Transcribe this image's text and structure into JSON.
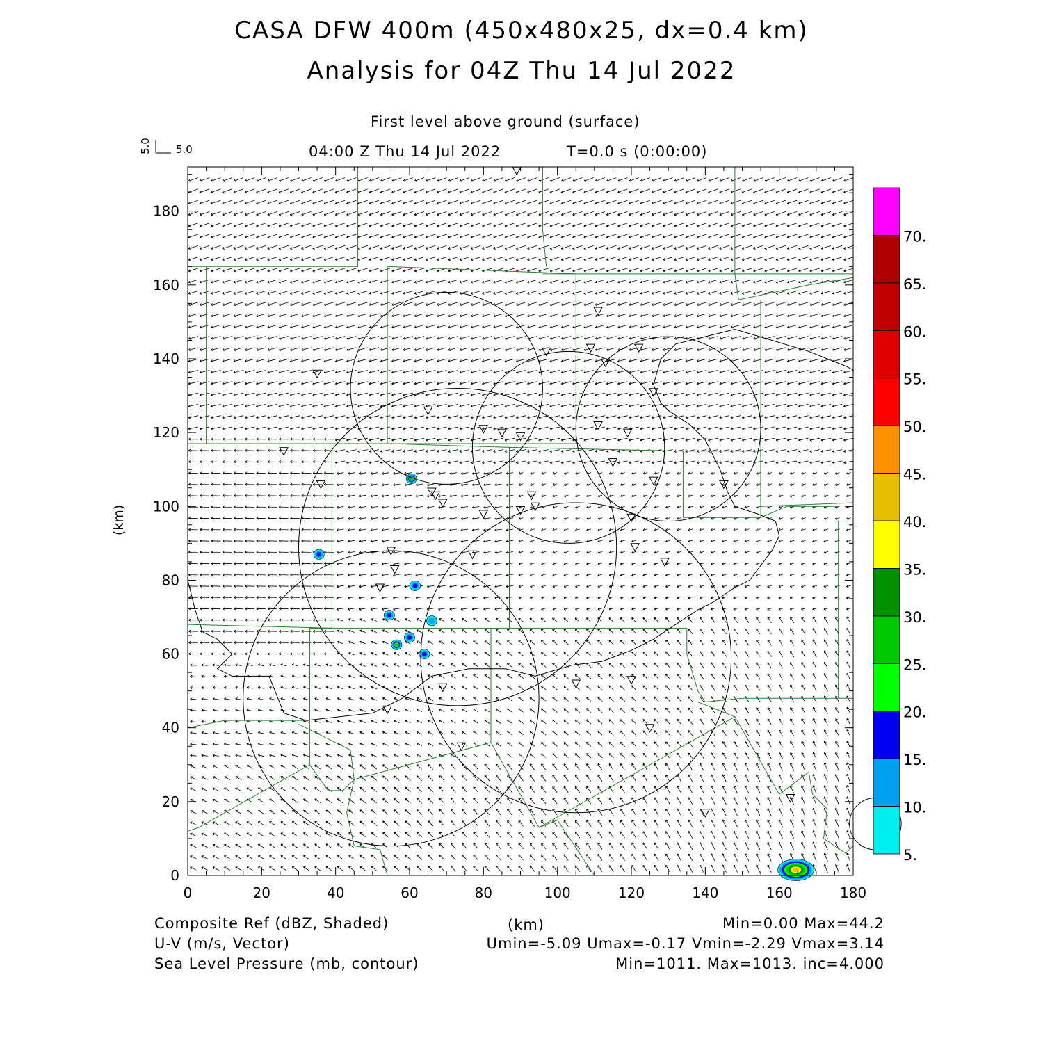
{
  "title_line1": "CASA DFW 400m (450x480x25, dx=0.4 km)",
  "title_line2": "Analysis for 04Z Thu 14 Jul 2022",
  "level_label": "First level above ground (surface)",
  "time_label": "04:00 Z Thu 14 Jul 2022",
  "t_label": "T=0.0 s (0:00:00)",
  "vector_key": {
    "x_label": "5.0",
    "y_label": "5.0"
  },
  "footer": {
    "field1_label": "Composite Ref (dBZ, Shaded)",
    "field2_label": "U-V (m/s, Vector)",
    "field3_label": "Sea Level Pressure (mb, contour)",
    "xunit": "(km)",
    "stats1": "Min=0.00 Max=44.2",
    "stats2": "Umin=-5.09 Umax=-0.17 Vmin=-2.29 Vmax=3.14",
    "stats3": "Min=1011. Max=1013. inc=4.000"
  },
  "colors": {
    "county": "#2e7d32",
    "contour": "#000000",
    "vector": "#000000"
  },
  "chart_data": {
    "type": "heatmap",
    "xlabel": "",
    "ylabel": "(km)",
    "xlim": [
      0,
      180
    ],
    "ylim": [
      0,
      192
    ],
    "xticks": [
      0,
      20,
      40,
      60,
      80,
      100,
      120,
      140,
      160,
      180
    ],
    "yticks": [
      0,
      20,
      40,
      60,
      80,
      100,
      120,
      140,
      160,
      180
    ],
    "colorbar": {
      "levels": [
        "5.",
        "10.",
        "15.",
        "20.",
        "25.",
        "30.",
        "35.",
        "40.",
        "45.",
        "50.",
        "55.",
        "60.",
        "65.",
        "70."
      ],
      "colors": [
        "#00eeee",
        "#00a0f0",
        "#0000f0",
        "#00ff00",
        "#00c800",
        "#009000",
        "#ffff00",
        "#e6c000",
        "#ff9000",
        "#ff0000",
        "#e00000",
        "#c00000",
        "#b00000",
        "#ff00ff"
      ]
    },
    "radar_sites": [
      [
        89,
        191
      ],
      [
        35,
        136
      ],
      [
        26,
        115
      ],
      [
        36,
        106
      ],
      [
        65,
        126
      ],
      [
        80,
        121
      ],
      [
        85,
        120
      ],
      [
        90,
        119
      ],
      [
        66,
        104
      ],
      [
        67,
        103
      ],
      [
        69,
        101
      ],
      [
        80,
        98
      ],
      [
        93,
        103
      ],
      [
        90,
        99
      ],
      [
        94,
        100
      ],
      [
        111,
        153
      ],
      [
        97,
        142
      ],
      [
        109,
        143
      ],
      [
        113,
        139
      ],
      [
        122,
        143
      ],
      [
        126,
        131
      ],
      [
        111,
        122
      ],
      [
        119,
        120
      ],
      [
        115,
        112
      ],
      [
        126,
        107
      ],
      [
        145,
        106
      ],
      [
        120,
        97
      ],
      [
        121,
        89
      ],
      [
        129,
        85
      ],
      [
        55,
        88
      ],
      [
        56,
        83
      ],
      [
        52,
        78
      ],
      [
        77,
        87
      ],
      [
        69,
        51
      ],
      [
        54,
        45
      ],
      [
        74,
        35
      ],
      [
        105,
        52
      ],
      [
        120,
        53
      ],
      [
        125,
        40
      ],
      [
        140,
        17
      ],
      [
        163,
        21
      ]
    ],
    "echo_cells": [
      {
        "x": 60.5,
        "y": 107.5,
        "max_dbz": 25
      },
      {
        "x": 35.5,
        "y": 87,
        "max_dbz": 15
      },
      {
        "x": 61.5,
        "y": 78.5,
        "max_dbz": 15
      },
      {
        "x": 54.5,
        "y": 70.5,
        "max_dbz": 15
      },
      {
        "x": 66,
        "y": 69,
        "max_dbz": 10
      },
      {
        "x": 60,
        "y": 64.5,
        "max_dbz": 15
      },
      {
        "x": 56.5,
        "y": 62.5,
        "max_dbz": 25
      },
      {
        "x": 64,
        "y": 60,
        "max_dbz": 15
      },
      {
        "x": 164.5,
        "y": 1.5,
        "max_dbz": 44.2
      }
    ],
    "range_rings": [
      {
        "cx": 70,
        "cy": 132,
        "r": 26
      },
      {
        "cx": 103,
        "cy": 116,
        "r": 26
      },
      {
        "cx": 130,
        "cy": 121,
        "r": 25
      },
      {
        "cx": 73,
        "cy": 89,
        "r": 43
      },
      {
        "cx": 105,
        "cy": 59,
        "r": 42
      },
      {
        "cx": 55,
        "cy": 48,
        "r": 40
      },
      {
        "cx": 186,
        "cy": 14,
        "r": 7
      }
    ],
    "wind_range": {
      "umin": -5.09,
      "umax": -0.17,
      "vmin": -2.29,
      "vmax": 3.14
    }
  }
}
